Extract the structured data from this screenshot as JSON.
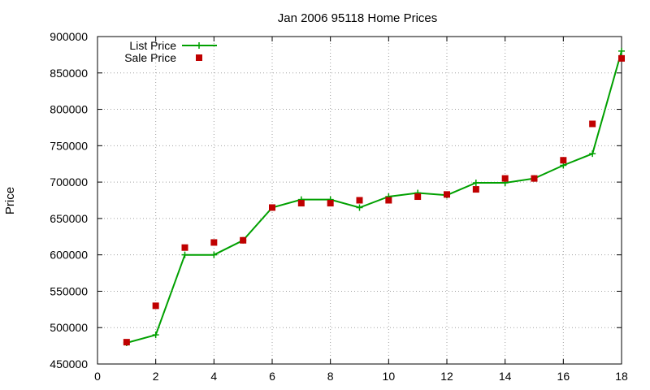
{
  "chart_data": {
    "type": "line",
    "title": "Jan 2006 95118 Home Prices",
    "xlabel": "",
    "ylabel": "Price",
    "xlim": [
      0,
      18
    ],
    "ylim": [
      450000,
      900000
    ],
    "xticks": [
      "0",
      "2",
      "4",
      "6",
      "8",
      "10",
      "12",
      "14",
      "16",
      "18"
    ],
    "yticks": [
      "450000",
      "500000",
      "550000",
      "600000",
      "650000",
      "700000",
      "750000",
      "800000",
      "850000",
      "900000"
    ],
    "grid": true,
    "legend_position": "top-left",
    "x": [
      1,
      2,
      3,
      4,
      5,
      6,
      7,
      8,
      9,
      10,
      11,
      12,
      13,
      14,
      15,
      16,
      17,
      18
    ],
    "series": [
      {
        "name": "List Price",
        "style": "line-with-plus-markers",
        "color": "#00a000",
        "values": [
          479000,
          490000,
          600000,
          600000,
          620000,
          665000,
          676000,
          676000,
          665000,
          680000,
          685000,
          682000,
          699000,
          699000,
          705000,
          723000,
          739000,
          880000
        ]
      },
      {
        "name": "Sale Price",
        "style": "square-markers",
        "color": "#c00000",
        "values": [
          480000,
          530000,
          610000,
          617000,
          620000,
          665000,
          671000,
          671000,
          675000,
          675000,
          680000,
          683000,
          690000,
          705000,
          705000,
          730000,
          780000,
          870000
        ]
      }
    ]
  }
}
